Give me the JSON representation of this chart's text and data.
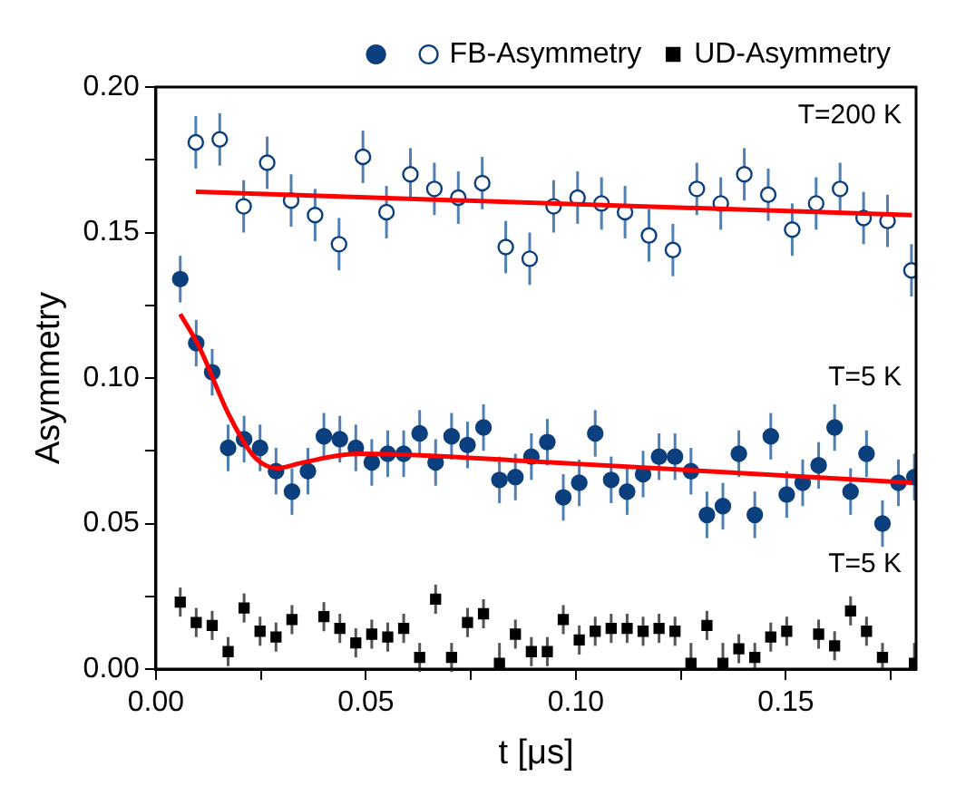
{
  "chart_data": {
    "type": "scatter",
    "xlabel": "t [μs]",
    "ylabel": "Asymmetry",
    "xlim": [
      0,
      0.181
    ],
    "ylim": [
      0,
      0.2
    ],
    "xticks": [
      {
        "value": 0,
        "label": "0.00"
      },
      {
        "value": 0.025,
        "label": null
      },
      {
        "value": 0.05,
        "label": "0.05"
      },
      {
        "value": 0.075,
        "label": null
      },
      {
        "value": 0.1,
        "label": "0.10"
      },
      {
        "value": 0.125,
        "label": null
      },
      {
        "value": 0.15,
        "label": "0.15"
      },
      {
        "value": 0.175,
        "label": null
      }
    ],
    "yticks": [
      {
        "value": 0,
        "label": "0.00"
      },
      {
        "value": 0.025,
        "label": null
      },
      {
        "value": 0.05,
        "label": "0.05"
      },
      {
        "value": 0.075,
        "label": null
      },
      {
        "value": 0.1,
        "label": "0.10"
      },
      {
        "value": 0.125,
        "label": null
      },
      {
        "value": 0.15,
        "label": "0.15"
      },
      {
        "value": 0.175,
        "label": null
      },
      {
        "value": 0.2,
        "label": "0.20"
      }
    ],
    "grid": false,
    "legend": "top",
    "annotations": [
      "T=200 K",
      "T=5 K",
      "T=5 K"
    ],
    "series": [
      {
        "color": "#0b3f7d",
        "marker": "circle",
        "x": [
          0.0058,
          0.0096,
          0.0134,
          0.0172,
          0.021,
          0.0248,
          0.0286,
          0.0324,
          0.0362,
          0.04,
          0.0438,
          0.0476,
          0.0514,
          0.0552,
          0.059,
          0.0628,
          0.0666,
          0.0704,
          0.0742,
          0.078,
          0.0818,
          0.0856,
          0.0894,
          0.0932,
          0.097,
          0.1008,
          0.1046,
          0.1084,
          0.1122,
          0.116,
          0.1198,
          0.1236,
          0.1274,
          0.1312,
          0.135,
          0.1388,
          0.1426,
          0.1464,
          0.1502,
          0.154,
          0.1578,
          0.1616,
          0.1654,
          0.1692,
          0.173,
          0.1768,
          0.1806
        ],
        "values": [
          0.134,
          0.112,
          0.102,
          0.076,
          0.079,
          0.076,
          0.068,
          0.061,
          0.068,
          0.08,
          0.079,
          0.076,
          0.071,
          0.074,
          0.074,
          0.081,
          0.071,
          0.08,
          0.077,
          0.083,
          0.065,
          0.066,
          0.073,
          0.078,
          0.059,
          0.064,
          0.081,
          0.065,
          0.061,
          0.067,
          0.073,
          0.073,
          0.068,
          0.053,
          0.056,
          0.074,
          0.053,
          0.08,
          0.06,
          0.064,
          0.07,
          0.083,
          0.061,
          0.074,
          0.05,
          0.064,
          0.066
        ],
        "errors": [
          0.008,
          0.008,
          0.008,
          0.008,
          0.008,
          0.008,
          0.008,
          0.008,
          0.008,
          0.008,
          0.008,
          0.008,
          0.008,
          0.008,
          0.008,
          0.008,
          0.008,
          0.008,
          0.008,
          0.008,
          0.008,
          0.008,
          0.008,
          0.008,
          0.008,
          0.008,
          0.008,
          0.008,
          0.008,
          0.008,
          0.008,
          0.008,
          0.008,
          0.008,
          0.008,
          0.008,
          0.008,
          0.008,
          0.008,
          0.008,
          0.008,
          0.008,
          0.008,
          0.008,
          0.008,
          0.008,
          0.008
        ]
      },
      {
        "name": "FB-Asymmetry",
        "color": "#0b3f7d",
        "marker": "open circle",
        "x": [
          0.0095,
          0.0152,
          0.0209,
          0.0265,
          0.0322,
          0.0379,
          0.0436,
          0.0493,
          0.0549,
          0.0606,
          0.0663,
          0.072,
          0.0777,
          0.0833,
          0.089,
          0.0947,
          0.1004,
          0.1061,
          0.1117,
          0.1174,
          0.1231,
          0.1288,
          0.1345,
          0.1401,
          0.1458,
          0.1515,
          0.1572,
          0.1629,
          0.1685,
          0.1742,
          0.1799
        ],
        "values": [
          0.181,
          0.182,
          0.159,
          0.174,
          0.161,
          0.156,
          0.146,
          0.176,
          0.157,
          0.17,
          0.165,
          0.162,
          0.167,
          0.145,
          0.141,
          0.159,
          0.162,
          0.16,
          0.157,
          0.149,
          0.144,
          0.165,
          0.16,
          0.17,
          0.163,
          0.151,
          0.16,
          0.165,
          0.155,
          0.154,
          0.137
        ],
        "errors": [
          0.009,
          0.009,
          0.009,
          0.009,
          0.009,
          0.009,
          0.009,
          0.009,
          0.009,
          0.009,
          0.009,
          0.009,
          0.009,
          0.009,
          0.009,
          0.009,
          0.009,
          0.009,
          0.009,
          0.009,
          0.009,
          0.009,
          0.009,
          0.009,
          0.009,
          0.009,
          0.009,
          0.009,
          0.009,
          0.009,
          0.009
        ]
      },
      {
        "name": "UD-Asymmetry",
        "color": "#000000",
        "marker": "square",
        "x": [
          0.0058,
          0.0096,
          0.0134,
          0.0172,
          0.021,
          0.0248,
          0.0286,
          0.0324,
          0.0362,
          0.04,
          0.0438,
          0.0476,
          0.0514,
          0.0552,
          0.059,
          0.0628,
          0.0666,
          0.0704,
          0.0742,
          0.078,
          0.0818,
          0.0856,
          0.0894,
          0.0932,
          0.097,
          0.1008,
          0.1046,
          0.1084,
          0.1122,
          0.116,
          0.1198,
          0.1236,
          0.1274,
          0.1312,
          0.135,
          0.1388,
          0.1426,
          0.1464,
          0.1502,
          0.154,
          0.1578,
          0.1616,
          0.1654,
          0.1692,
          0.173,
          0.1768,
          0.1806
        ],
        "values": [
          0.023,
          0.016,
          0.015,
          0.006,
          0.021,
          0.013,
          0.011,
          0.017,
          null,
          0.018,
          0.014,
          0.009,
          0.012,
          0.011,
          0.014,
          0.004,
          0.024,
          0.004,
          0.016,
          0.019,
          0.002,
          0.012,
          0.006,
          0.006,
          0.017,
          0.01,
          0.013,
          0.014,
          0.014,
          0.013,
          0.014,
          0.013,
          0.002,
          0.015,
          0.002,
          0.007,
          0.004,
          0.011,
          0.013,
          null,
          0.012,
          0.008,
          0.02,
          0.013,
          0.004,
          null,
          0.002
        ],
        "errors": [
          0.005,
          0.005,
          0.005,
          0.005,
          0.005,
          0.005,
          0.005,
          0.005,
          null,
          0.005,
          0.005,
          0.005,
          0.005,
          0.005,
          0.005,
          0.005,
          0.005,
          0.005,
          0.005,
          0.005,
          [
            0,
            0.009
          ],
          0.005,
          0.005,
          0.005,
          0.005,
          0.005,
          0.005,
          0.005,
          0.005,
          0.005,
          0.005,
          0.005,
          [
            0,
            0.009
          ],
          0.005,
          [
            0,
            0.009
          ],
          0.005,
          [
            0,
            0.009
          ],
          0.005,
          0.005,
          null,
          0.005,
          0.005,
          0.005,
          0.005,
          [
            0,
            0.009
          ],
          null,
          [
            0,
            0.009
          ]
        ]
      },
      {
        "type": "line",
        "marker": "none",
        "color": "#ff0000",
        "x": [
          0.0095,
          0.18
        ],
        "values": [
          0.164,
          0.156
        ]
      },
      {
        "type": "line",
        "marker": "none",
        "color": "#ff0000",
        "x": [
          0.0058,
          0.0102,
          0.0175,
          0.0234,
          0.029,
          0.035,
          0.048,
          0.094,
          0.18
        ],
        "values": [
          0.122,
          0.111,
          0.087,
          0.073,
          0.069,
          0.071,
          0.074,
          0.071,
          0.064
        ]
      }
    ]
  }
}
